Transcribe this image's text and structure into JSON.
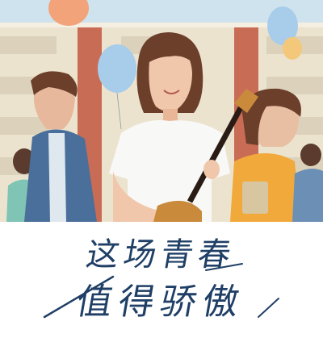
{
  "title": {
    "line1": "这场青春",
    "line2": "值得骄傲"
  },
  "colors": {
    "sky": "#cfe3ee",
    "wall": "#ece3cf",
    "pillar": "#c96c55",
    "ink": "#1f3f66",
    "balloon_blue": "#a7cdea",
    "balloon_orange": "#f2a37a",
    "balloon_yellow": "#f4c87a"
  }
}
